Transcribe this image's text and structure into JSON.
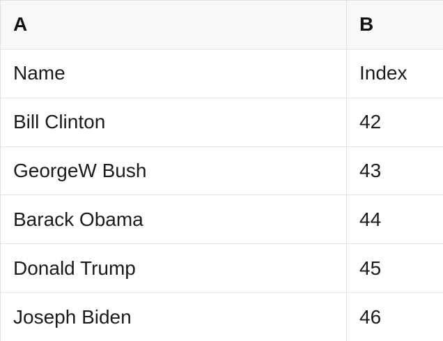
{
  "table": {
    "column_letters": [
      "A",
      "B"
    ],
    "header_row": {
      "name": "Name",
      "index": "Index"
    },
    "rows": [
      {
        "name": "Bill Clinton",
        "index": "42"
      },
      {
        "name": "GeorgeW Bush",
        "index": "43"
      },
      {
        "name": "Barack Obama",
        "index": "44"
      },
      {
        "name": "Donald Trump",
        "index": "45"
      },
      {
        "name": "Joseph Biden",
        "index": "46"
      }
    ]
  },
  "colors": {
    "header_background": "#f8f8f8",
    "border": "#e0e0e0",
    "text": "#1a1a1a",
    "cell_background": "#ffffff"
  }
}
